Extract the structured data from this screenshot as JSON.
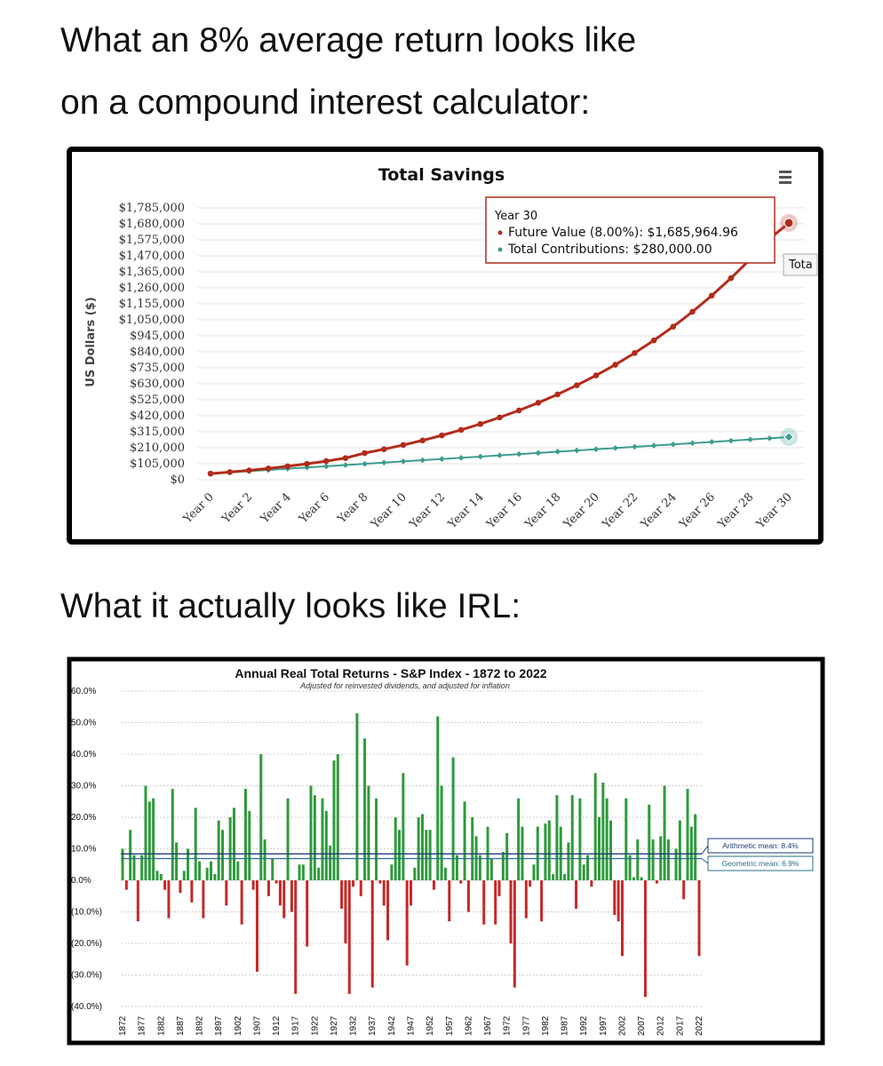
{
  "headings": [
    "What an 8% average return looks like",
    "on a compound interest calculator:",
    "What it actually looks like IRL:"
  ],
  "chart_data": [
    {
      "type": "line",
      "title": "Total Savings",
      "y_label": "US Dollars ($)",
      "categories": [
        "Year 0",
        null,
        "Year 2",
        null,
        "Year 4",
        null,
        "Year 6",
        null,
        "Year 8",
        null,
        "Year 10",
        null,
        "Year 12",
        null,
        "Year 14",
        null,
        "Year 16",
        null,
        "Year 18",
        null,
        "Year 20",
        null,
        "Year 22",
        null,
        "Year 24",
        null,
        "Year 26",
        null,
        "Year 28",
        null,
        "Year 30"
      ],
      "series": [
        {
          "color": "#b22c1a",
          "values": [
            40000,
            50000,
            61000,
            74000,
            88000,
            104000,
            122000,
            142000,
            175000,
            200000,
            228000,
            258000,
            291000,
            327000,
            366000,
            409000,
            455000,
            505000,
            560000,
            620000,
            685000,
            755000,
            832000,
            915000,
            1005000,
            1103000,
            1209000,
            1324000,
            1448000,
            1582000,
            1685964.96
          ]
        },
        {
          "color": "#3d9d8f",
          "values": [
            40000,
            48000,
            56000,
            64000,
            72000,
            80000,
            88000,
            96000,
            104000,
            112000,
            120000,
            128000,
            136000,
            144000,
            152000,
            160000,
            168000,
            176000,
            184000,
            192000,
            200000,
            208000,
            216000,
            224000,
            232000,
            240000,
            248000,
            256000,
            264000,
            272000,
            280000
          ]
        }
      ],
      "ylim": [
        0,
        1785000
      ],
      "yticks": [
        {
          "value": 0,
          "label": "$0"
        },
        {
          "value": 105000,
          "label": "$105,000"
        },
        {
          "value": 210000,
          "label": "$210,000"
        },
        {
          "value": 315000,
          "label": "$315,000"
        },
        {
          "value": 420000,
          "label": "$420,000"
        },
        {
          "value": 525000,
          "label": "$525,000"
        },
        {
          "value": 630000,
          "label": "$630,000"
        },
        {
          "value": 735000,
          "label": "$735,000"
        },
        {
          "value": 840000,
          "label": "$840,000"
        },
        {
          "value": 945000,
          "label": "$945,000"
        },
        {
          "value": 1050000,
          "label": "$1,050,000"
        },
        {
          "value": 1155000,
          "label": "$1,155,000"
        },
        {
          "value": 1260000,
          "label": "$1,260,000"
        },
        {
          "value": 1365000,
          "label": "$1,365,000"
        },
        {
          "value": 1470000,
          "label": "$1,470,000"
        },
        {
          "value": 1575000,
          "label": "$1,575,000"
        },
        {
          "value": 1680000,
          "label": "$1,680,000"
        },
        {
          "value": 1785000,
          "label": "$1,785,000"
        }
      ],
      "grid": true,
      "tooltip": {
        "title": "Year 30",
        "lines": [
          "Future Value (8.00%): $1,685,964.96",
          "Total Contributions: $280,000.00"
        ]
      },
      "clipped_label": "Tota"
    },
    {
      "type": "bar",
      "title": "Annual Real Total Returns - S&P Index - 1872 to 2022",
      "subtitle": "Adjusted for reinvested dividends, and adjusted for inflation",
      "x": [
        1872,
        1873,
        1874,
        1875,
        1876,
        1877,
        1878,
        1879,
        1880,
        1881,
        1882,
        1883,
        1884,
        1885,
        1886,
        1887,
        1888,
        1889,
        1890,
        1891,
        1892,
        1893,
        1894,
        1895,
        1896,
        1897,
        1898,
        1899,
        1900,
        1901,
        1902,
        1903,
        1904,
        1905,
        1906,
        1907,
        1908,
        1909,
        1910,
        1911,
        1912,
        1913,
        1914,
        1915,
        1916,
        1917,
        1918,
        1919,
        1920,
        1921,
        1922,
        1923,
        1924,
        1925,
        1926,
        1927,
        1928,
        1929,
        1930,
        1931,
        1932,
        1933,
        1934,
        1935,
        1936,
        1937,
        1938,
        1939,
        1940,
        1941,
        1942,
        1943,
        1944,
        1945,
        1946,
        1947,
        1948,
        1949,
        1950,
        1951,
        1952,
        1953,
        1954,
        1955,
        1956,
        1957,
        1958,
        1959,
        1960,
        1961,
        1962,
        1963,
        1964,
        1965,
        1966,
        1967,
        1968,
        1969,
        1970,
        1971,
        1972,
        1973,
        1974,
        1975,
        1976,
        1977,
        1978,
        1979,
        1980,
        1981,
        1982,
        1983,
        1984,
        1985,
        1986,
        1987,
        1988,
        1989,
        1990,
        1991,
        1992,
        1993,
        1994,
        1995,
        1996,
        1997,
        1998,
        1999,
        2000,
        2001,
        2002,
        2003,
        2004,
        2005,
        2006,
        2007,
        2008,
        2009,
        2010,
        2011,
        2012,
        2013,
        2014,
        2015,
        2016,
        2017,
        2018,
        2019,
        2020,
        2021,
        2022
      ],
      "values": [
        10,
        -3,
        16,
        8,
        -13,
        8,
        30,
        25,
        26,
        3,
        2,
        -3,
        -12,
        29,
        12,
        -4,
        3,
        10,
        -7,
        23,
        6,
        -12,
        4,
        6,
        2,
        19,
        16,
        -8,
        20,
        23,
        6,
        -14,
        29,
        22,
        -3,
        -29,
        40,
        13,
        -5,
        7,
        -1,
        -8,
        -12,
        26,
        -10,
        -36,
        5,
        5,
        -21,
        30,
        27,
        4,
        26,
        22,
        11,
        38,
        40,
        -9,
        -20,
        -36,
        -2,
        53,
        -5,
        45,
        30,
        -34,
        26,
        -1,
        -8,
        -19,
        5,
        20,
        16,
        34,
        -27,
        -8,
        4,
        20,
        21,
        16,
        16,
        -3,
        52,
        30,
        4,
        -13,
        39,
        8,
        -1,
        25,
        -10,
        20,
        14,
        8,
        -14,
        17,
        7,
        -14,
        -5,
        9,
        15,
        -20,
        -34,
        26,
        17,
        -12,
        -2,
        5,
        17,
        -13,
        18,
        19,
        2,
        27,
        17,
        2,
        12,
        27,
        -9,
        26,
        5,
        8,
        -2,
        34,
        20,
        31,
        26,
        19,
        -11,
        -13,
        -24,
        26,
        8,
        1,
        13,
        1,
        -37,
        24,
        13,
        -1,
        14,
        30,
        13,
        0,
        10,
        19,
        -6,
        29,
        17,
        21,
        -24
      ],
      "xlim": [
        1872,
        2022
      ],
      "xticks": [
        1872,
        1877,
        1882,
        1887,
        1892,
        1897,
        1902,
        1907,
        1912,
        1917,
        1922,
        1927,
        1932,
        1937,
        1942,
        1947,
        1952,
        1957,
        1962,
        1967,
        1972,
        1977,
        1982,
        1987,
        1992,
        1997,
        2002,
        2007,
        2012,
        2017,
        2022
      ],
      "ylim": [
        -40,
        60
      ],
      "yticks": [
        {
          "value": 60,
          "label": "60.0%"
        },
        {
          "value": 50,
          "label": "50.0%"
        },
        {
          "value": 40,
          "label": "40.0%"
        },
        {
          "value": 30,
          "label": "30.0%"
        },
        {
          "value": 20,
          "label": "20.0%"
        },
        {
          "value": 10,
          "label": "10.0%"
        },
        {
          "value": 0,
          "label": "0.0%"
        },
        {
          "value": -10,
          "label": "(10.0%)"
        },
        {
          "value": -20,
          "label": "(20.0%)"
        },
        {
          "value": -30,
          "label": "(30.0%)"
        },
        {
          "value": -40,
          "label": "(40.0%)"
        }
      ],
      "grid": true,
      "positive_color": "#2f9a3c",
      "negative_color": "#c62828",
      "reference_lines": [
        {
          "value": 8.4,
          "label": "Arithmetic mean: 8.4%",
          "color": "#1f3a78"
        },
        {
          "value": 6.9,
          "label": "Geometric mean: 6.9%",
          "color": "#2a6f8a"
        }
      ]
    }
  ]
}
